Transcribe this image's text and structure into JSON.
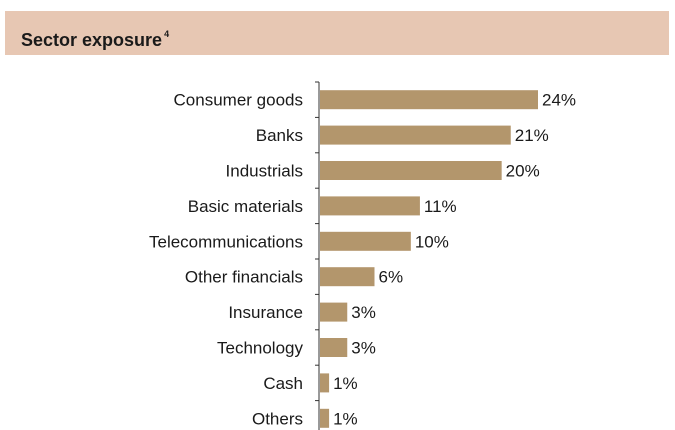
{
  "header": {
    "title": "Sector exposure",
    "footnote": "4"
  },
  "colors": {
    "bar": "#b3966c",
    "axis": "#333333",
    "header_bg": "#e7c7b3"
  },
  "chart_data": {
    "type": "bar",
    "orientation": "horizontal",
    "title": "Sector exposure",
    "categories": [
      "Consumer goods",
      "Banks",
      "Industrials",
      "Basic materials",
      "Telecommunications",
      "Other financials",
      "Insurance",
      "Technology",
      "Cash",
      "Others"
    ],
    "values": [
      24,
      21,
      20,
      11,
      10,
      6,
      3,
      3,
      1,
      1
    ],
    "value_labels": [
      "24%",
      "21%",
      "20%",
      "11%",
      "10%",
      "6%",
      "3%",
      "3%",
      "1%",
      "1%"
    ],
    "unit": "%",
    "xlim": [
      0,
      24
    ],
    "grid": false,
    "legend": "none"
  }
}
